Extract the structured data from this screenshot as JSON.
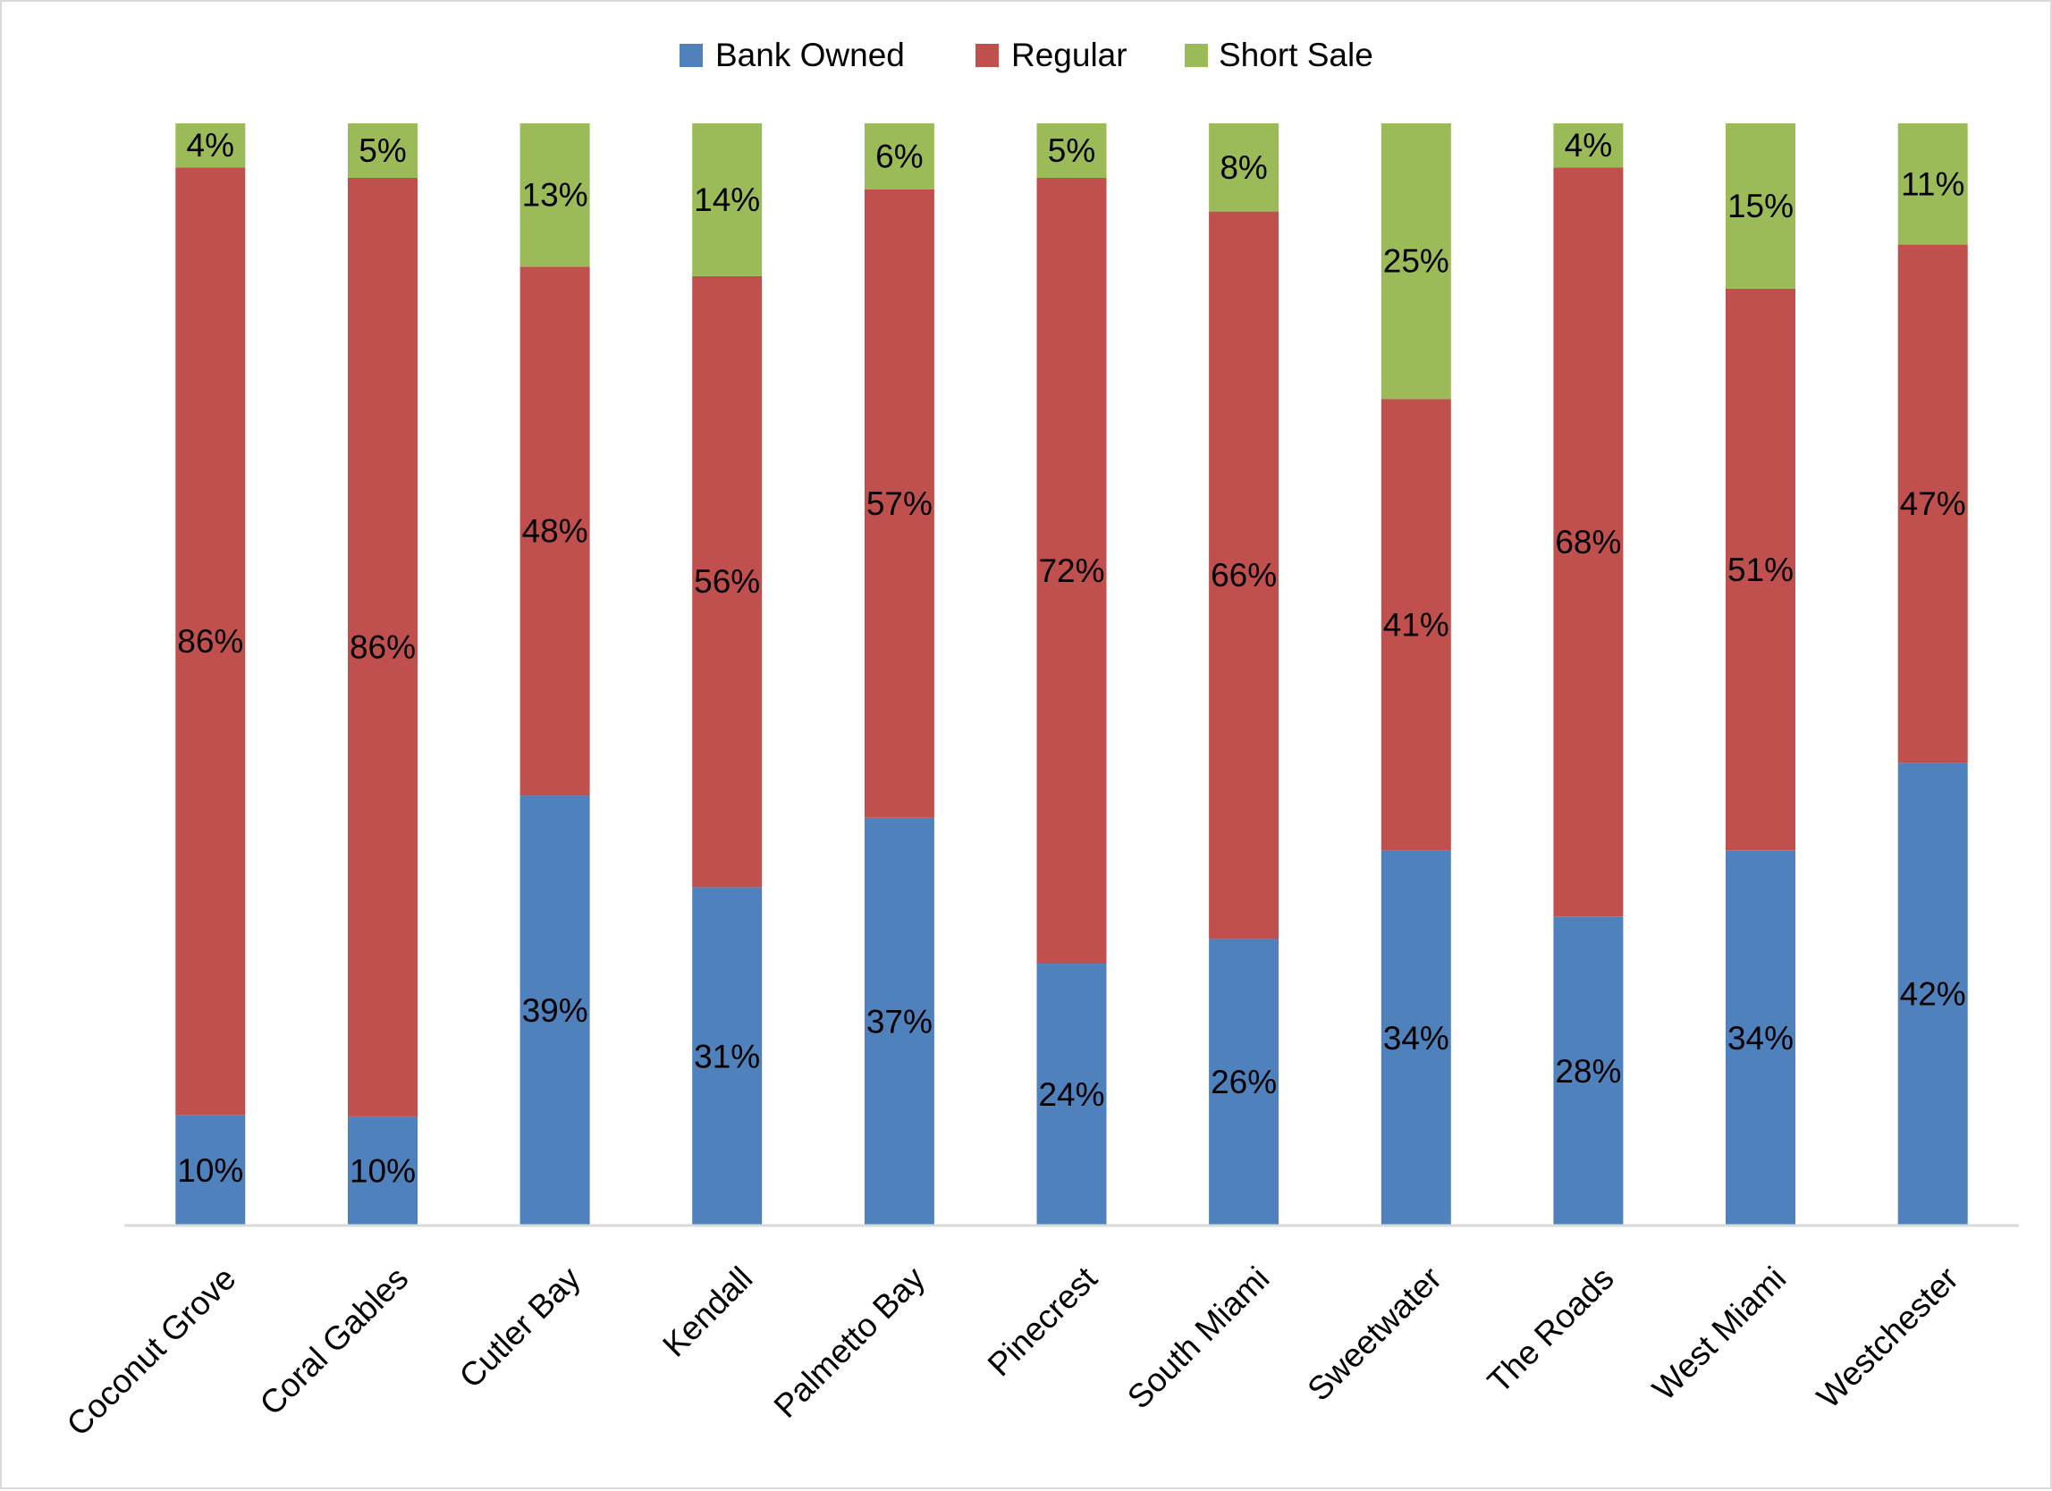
{
  "chart_data": {
    "type": "bar",
    "stacked": true,
    "percent_stacked": true,
    "title": "",
    "xlabel": "",
    "ylabel": "",
    "ylim": [
      0,
      100
    ],
    "grid": false,
    "legend_position": "top",
    "value_format": "percent",
    "categories": [
      "Coconut Grove",
      "Coral Gables",
      "Cutler Bay",
      "Kendall",
      "Palmetto Bay",
      "Pinecrest",
      "South Miami",
      "Sweetwater",
      "The Roads",
      "West Miami",
      "Westchester"
    ],
    "series": [
      {
        "name": "Bank Owned",
        "color": "#4F81BD",
        "values": [
          10,
          10,
          39,
          31,
          37,
          24,
          26,
          34,
          28,
          34,
          42
        ]
      },
      {
        "name": "Regular",
        "color": "#C0504D",
        "values": [
          86,
          86,
          48,
          56,
          57,
          72,
          66,
          41,
          68,
          51,
          47
        ]
      },
      {
        "name": "Short Sale",
        "color": "#9BBB59",
        "values": [
          4,
          5,
          13,
          14,
          6,
          5,
          8,
          25,
          4,
          15,
          11
        ]
      }
    ]
  }
}
